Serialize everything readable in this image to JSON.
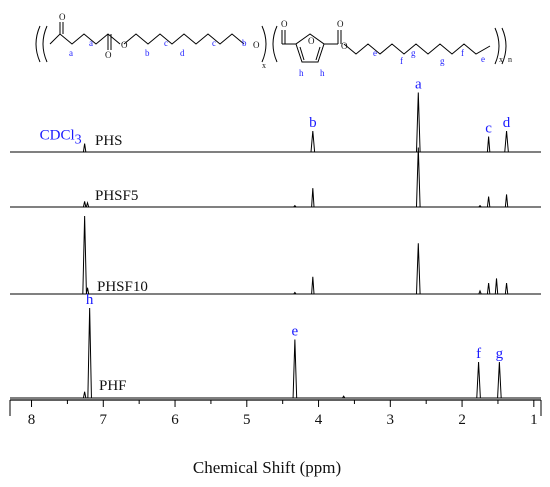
{
  "chart_data": {
    "type": "line",
    "subtype": "stacked NMR spectra",
    "xlabel": "Chemical Shift (ppm)",
    "xlim": [
      8.3,
      0.9
    ],
    "x_reversed": true,
    "xticks": [
      8,
      7,
      6,
      5,
      4,
      3,
      2,
      1
    ],
    "xtick_labels": [
      "8",
      "7",
      "6",
      "5",
      "4",
      "3",
      "2",
      "1"
    ],
    "grid": false,
    "series": [
      {
        "name": "PHS",
        "peaks": [
          {
            "ppm": 7.26,
            "rel_height": 0.12
          },
          {
            "ppm": 4.08,
            "rel_height": 0.3
          },
          {
            "ppm": 2.61,
            "rel_height": 0.85
          },
          {
            "ppm": 1.63,
            "rel_height": 0.22
          },
          {
            "ppm": 1.38,
            "rel_height": 0.3
          }
        ],
        "annotations": [
          {
            "text": "CDCl",
            "sub": "3",
            "ppm": 7.26
          },
          {
            "text": "b",
            "ppm": 4.08
          },
          {
            "text": "a",
            "ppm": 2.61
          },
          {
            "text": "c",
            "ppm": 1.63
          },
          {
            "text": "d",
            "ppm": 1.38
          }
        ]
      },
      {
        "name": "PHSF5",
        "peaks": [
          {
            "ppm": 7.26,
            "rel_height": 0.08
          },
          {
            "ppm": 7.22,
            "rel_height": 0.06
          },
          {
            "ppm": 4.33,
            "rel_height": 0.02
          },
          {
            "ppm": 4.08,
            "rel_height": 0.27
          },
          {
            "ppm": 2.61,
            "rel_height": 0.85
          },
          {
            "ppm": 1.75,
            "rel_height": 0.02
          },
          {
            "ppm": 1.63,
            "rel_height": 0.15
          },
          {
            "ppm": 1.38,
            "rel_height": 0.18
          }
        ],
        "annotations": []
      },
      {
        "name": "PHSF10",
        "peaks": [
          {
            "ppm": 7.26,
            "rel_height": 1.0
          },
          {
            "ppm": 7.22,
            "rel_height": 0.08
          },
          {
            "ppm": 4.33,
            "rel_height": 0.02
          },
          {
            "ppm": 4.08,
            "rel_height": 0.22
          },
          {
            "ppm": 2.61,
            "rel_height": 0.65
          },
          {
            "ppm": 1.75,
            "rel_height": 0.04
          },
          {
            "ppm": 1.63,
            "rel_height": 0.14
          },
          {
            "ppm": 1.52,
            "rel_height": 0.2
          },
          {
            "ppm": 1.38,
            "rel_height": 0.14
          }
        ],
        "annotations": []
      },
      {
        "name": "PHF",
        "peaks": [
          {
            "ppm": 7.26,
            "rel_height": 0.07
          },
          {
            "ppm": 7.19,
            "rel_height": 1.0
          },
          {
            "ppm": 4.33,
            "rel_height": 0.65
          },
          {
            "ppm": 3.65,
            "rel_height": 0.02
          },
          {
            "ppm": 1.77,
            "rel_height": 0.4
          },
          {
            "ppm": 1.48,
            "rel_height": 0.4
          }
        ],
        "annotations": [
          {
            "text": "h",
            "ppm": 7.19
          },
          {
            "text": "e",
            "ppm": 4.33
          },
          {
            "text": "f",
            "ppm": 1.77
          },
          {
            "text": "g",
            "ppm": 1.48
          }
        ]
      }
    ]
  },
  "structure": {
    "atom_labels": [
      "O",
      "O",
      "O",
      "O",
      "O",
      "O",
      "O",
      "O"
    ],
    "proton_labels": [
      "a",
      "a",
      "b",
      "c",
      "d",
      "c",
      "b",
      "h",
      "h",
      "e",
      "f",
      "g",
      "g",
      "f",
      "e"
    ],
    "subscripts": [
      "x",
      "x",
      "n"
    ]
  },
  "colors": {
    "annotation": "#1a1aff",
    "trace": "#000000"
  }
}
